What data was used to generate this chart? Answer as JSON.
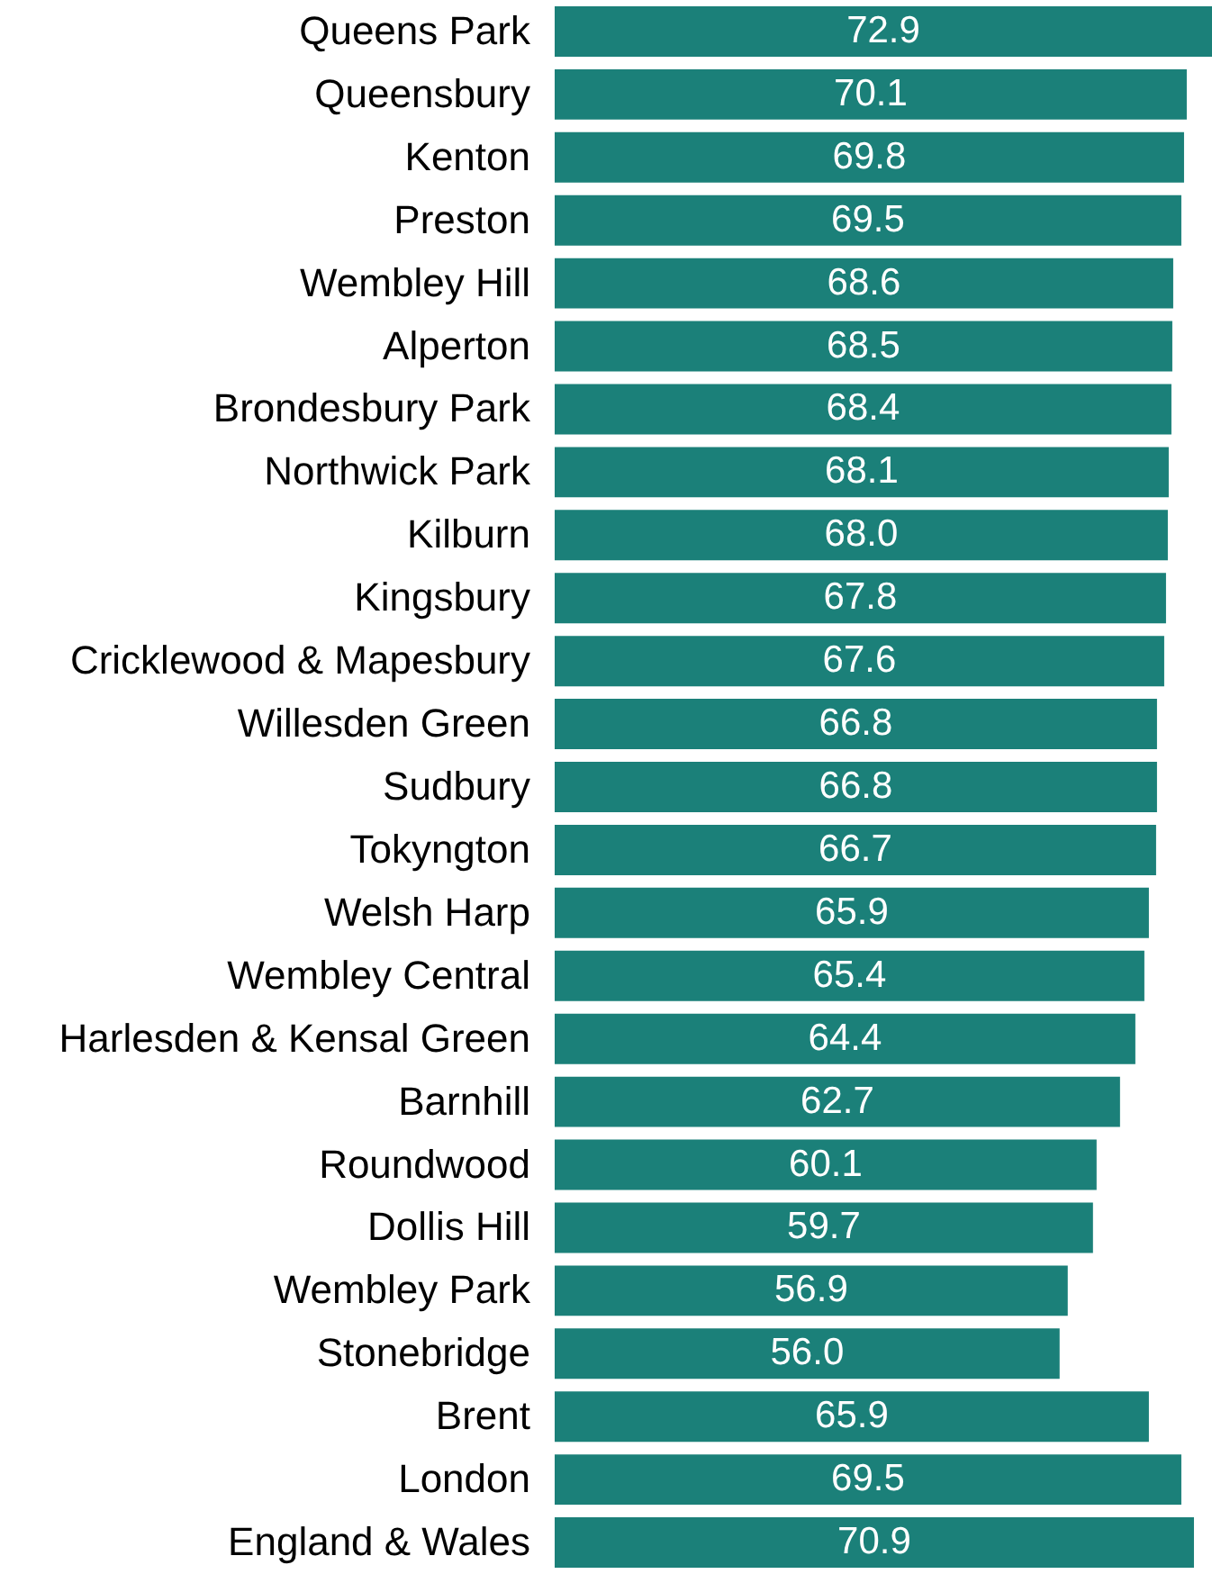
{
  "chart_data": {
    "type": "bar",
    "orientation": "horizontal",
    "tick_labels": "y",
    "categories": [
      "Queens Park",
      "Queensbury",
      "Kenton",
      "Preston",
      "Wembley Hill",
      "Alperton",
      "Brondesbury Park",
      "Northwick Park",
      "Kilburn",
      "Kingsbury",
      "Cricklewood & Mapesbury",
      "Willesden Green",
      "Sudbury",
      "Tokyngton",
      "Welsh Harp",
      "Wembley Central",
      "Harlesden & Kensal Green",
      "Barnhill",
      "Roundwood",
      "Dollis Hill",
      "Wembley Park",
      "Stonebridge",
      null,
      "Brent",
      "London",
      "England & Wales"
    ],
    "values": [
      72.9,
      70.1,
      69.8,
      69.5,
      68.6,
      68.5,
      68.4,
      68.1,
      68.0,
      67.8,
      67.6,
      66.8,
      66.8,
      66.7,
      65.9,
      65.4,
      64.4,
      62.7,
      60.1,
      59.7,
      56.9,
      56.0,
      null,
      65.9,
      69.5,
      70.9
    ],
    "value_labels": [
      "72.9",
      "70.1",
      "69.8",
      "69.5",
      "68.6",
      "68.5",
      "68.4",
      "68.1",
      "68.0",
      "67.8",
      "67.6",
      "66.8",
      "66.8",
      "66.7",
      "65.9",
      "65.4",
      "64.4",
      "62.7",
      "60.1",
      "59.7",
      "56.9",
      "56.0",
      null,
      "65.9",
      "69.5",
      "70.9"
    ],
    "color": "#1b8079",
    "xlim": [
      0,
      72.9
    ]
  }
}
